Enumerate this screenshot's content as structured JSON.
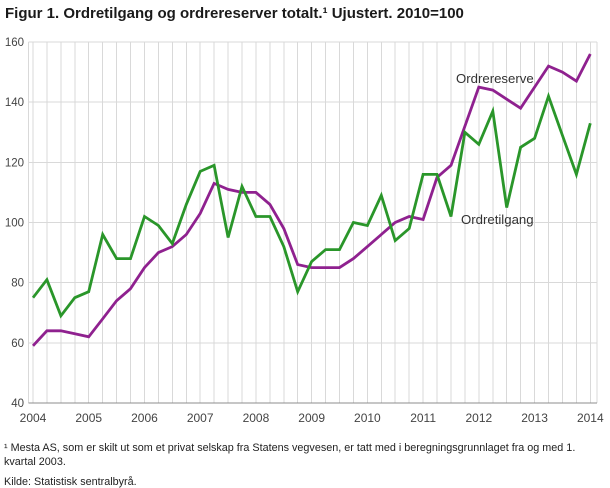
{
  "title": "Figur 1. Ordretilgang og ordrereserver totalt.¹ Ujustert. 2010=100",
  "footnote": "¹ Mesta AS, som er skilt ut som et privat selskap fra Statens vegvesen, er tatt med i beregningsgrunnlaget fra og med 1. kvartal 2003.",
  "source": "Kilde: Statistisk sentralbyrå.",
  "colors": {
    "green": "#2a962a",
    "purple": "#8f218f",
    "grid": "#d9d9d9",
    "axis": "#8c8c8c",
    "tick_text": "#444444",
    "annotation_text": "#333333"
  },
  "chart_data": {
    "type": "line",
    "title": "Figur 1. Ordretilgang og ordrereserver totalt. Ujustert. 2010=100",
    "x_unit": "quarter",
    "x_start": "2004 K1",
    "x_end": "2014 K1",
    "year_ticks": [
      "2004",
      "2005",
      "2006",
      "2007",
      "2008",
      "2009",
      "2010",
      "2011",
      "2012",
      "2013",
      "2014"
    ],
    "quarters_per_year": 4,
    "y_ticks": [
      40,
      60,
      80,
      100,
      120,
      140,
      160
    ],
    "ylim": [
      40,
      160
    ],
    "grid": "light gray; horizontal at every 20 units, vertical at every quarter",
    "legend_position": "inline annotations on chart",
    "series": [
      {
        "name": "Ordretilgang",
        "color_key": "green",
        "values": [
          75,
          81,
          69,
          75,
          77,
          96,
          88,
          88,
          102,
          99,
          93,
          106,
          117,
          119,
          95,
          112,
          102,
          102,
          92,
          77,
          87,
          91,
          91,
          100,
          99,
          109,
          94,
          98,
          116,
          116,
          102,
          130,
          126,
          137,
          105,
          125,
          128,
          142,
          129,
          116,
          133
        ]
      },
      {
        "name": "Ordrereserve",
        "color_key": "purple",
        "values": [
          59,
          64,
          64,
          63,
          62,
          68,
          74,
          78,
          85,
          90,
          92,
          96,
          103,
          113,
          111,
          110,
          110,
          106,
          98,
          86,
          85,
          85,
          85,
          88,
          92,
          96,
          100,
          102,
          101,
          115,
          119,
          132,
          145,
          144,
          141,
          138,
          145,
          152,
          150,
          147,
          156
        ]
      }
    ],
    "annotations": [
      {
        "text": "Ordrereserve",
        "x": 456,
        "y": 83
      },
      {
        "text": "Ordretilgang",
        "x": 461,
        "y": 224
      }
    ]
  }
}
